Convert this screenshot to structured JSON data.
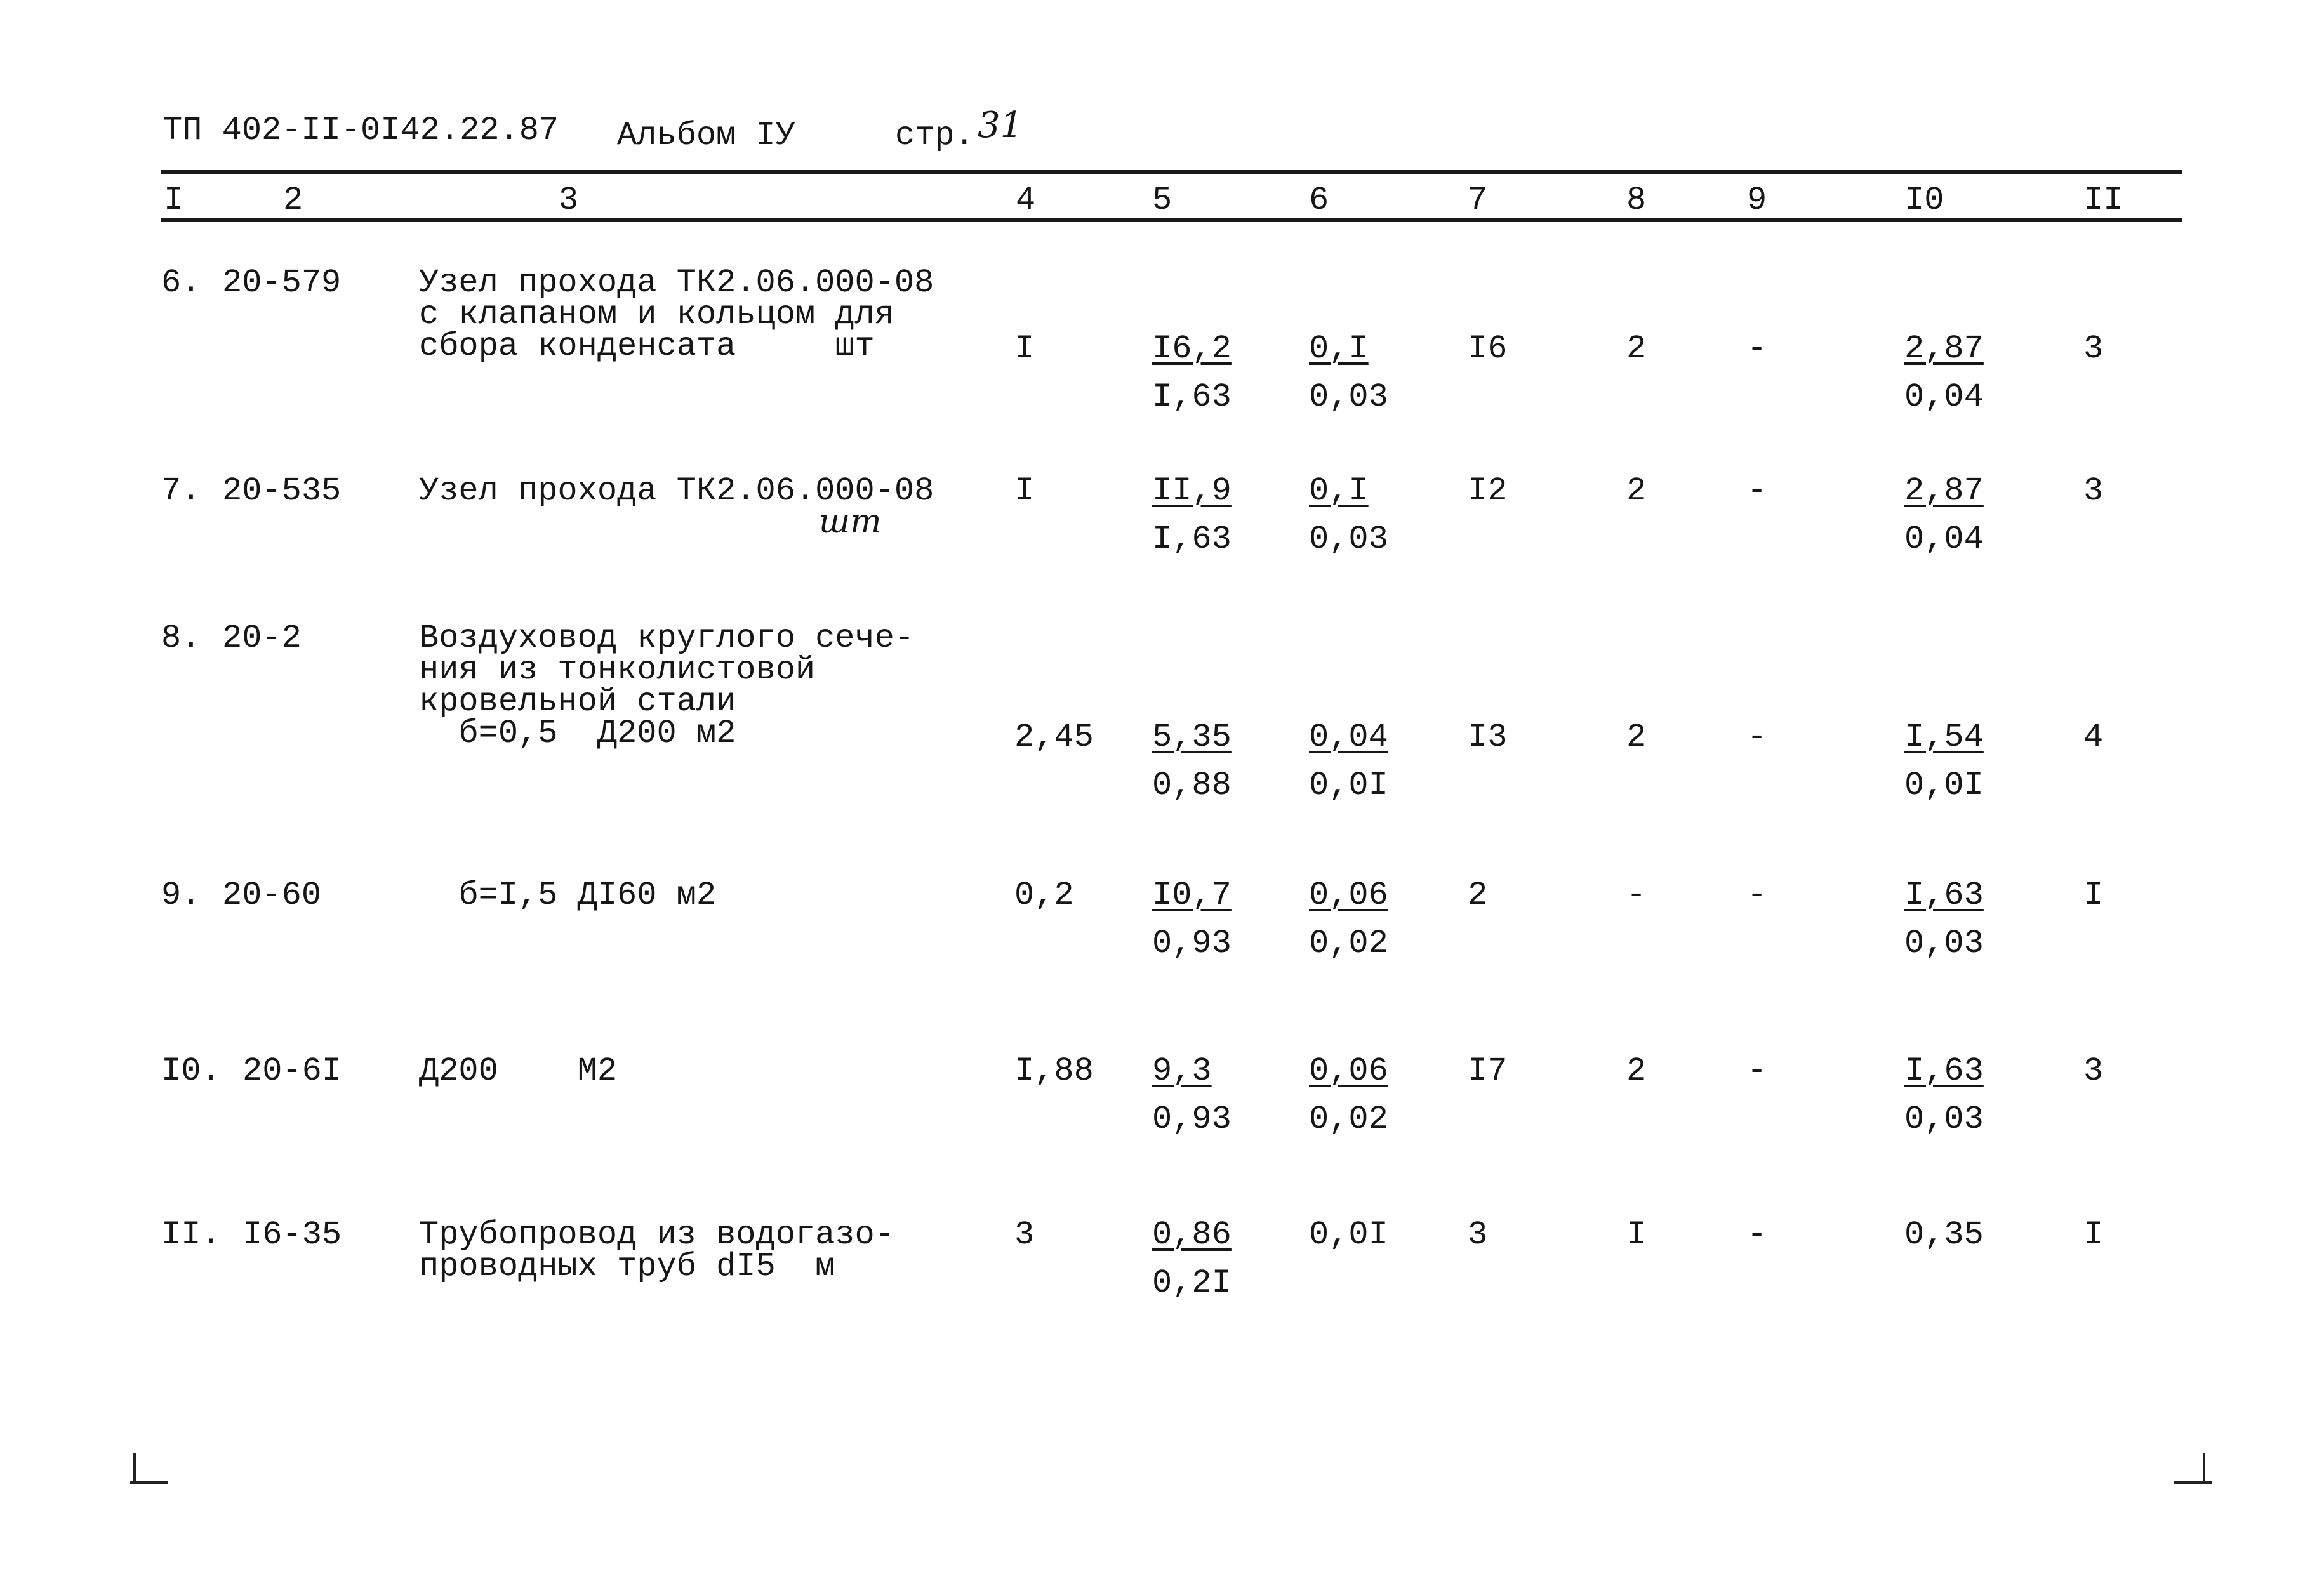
{
  "header": {
    "doc_code": "ТП 402-II-0I42.22.87",
    "album": "Альбом IУ",
    "page_label": "стр.",
    "page_number": "31"
  },
  "column_headers": [
    "I",
    "2",
    "3",
    "4",
    "5",
    "6",
    "7",
    "8",
    "9",
    "I0",
    "II"
  ],
  "rows": [
    {
      "num": "6.",
      "code": "20-579",
      "desc": [
        "Узел прохода ТК2.06.000-08",
        "с клапаном и кольцом для",
        "сбора конденсата     шт"
      ],
      "handwritten_unit": "",
      "c4": "I",
      "c5": {
        "num": "I6,2",
        "den": "I,63"
      },
      "c6": {
        "num": "0,I",
        "den": "0,03"
      },
      "c7": "I6",
      "c8": "2",
      "c9": "-",
      "c10": {
        "num": "2,87",
        "den": "0,04"
      },
      "c11": "3"
    },
    {
      "num": "7.",
      "code": "20-535",
      "desc": [
        "Узел прохода ТК2.06.000-08"
      ],
      "handwritten_unit": "шт",
      "c4": "I",
      "c5": {
        "num": "II,9",
        "den": "I,63"
      },
      "c6": {
        "num": "0,I",
        "den": "0,03"
      },
      "c7": "I2",
      "c8": "2",
      "c9": "-",
      "c10": {
        "num": "2,87",
        "den": "0,04"
      },
      "c11": "3"
    },
    {
      "num": "8.",
      "code": "20-2",
      "desc": [
        "Воздуховод круглого сече-",
        "ния из тонколистовой",
        "кровельной стали",
        "  б=0,5  Д200 м2"
      ],
      "handwritten_unit": "",
      "c4": "2,45",
      "c5": {
        "num": "5,35",
        "den": "0,88"
      },
      "c6": {
        "num": "0,04",
        "den": "0,0I"
      },
      "c7": "I3",
      "c8": "2",
      "c9": "-",
      "c10": {
        "num": "I,54",
        "den": "0,0I"
      },
      "c11": "4"
    },
    {
      "num": "9.",
      "code": "20-60",
      "desc": [
        "  б=I,5 ДI60 м2"
      ],
      "handwritten_unit": "",
      "c4": "0,2",
      "c5": {
        "num": "I0,7",
        "den": "0,93"
      },
      "c6": {
        "num": "0,06",
        "den": "0,02"
      },
      "c7": "2",
      "c8": "-",
      "c9": "-",
      "c10": {
        "num": "I,63",
        "den": "0,03"
      },
      "c11": "I"
    },
    {
      "num": "I0.",
      "code": "20-6I",
      "desc": [
        "Д200    М2"
      ],
      "handwritten_unit": "",
      "c4": "I,88",
      "c5": {
        "num": "9,3",
        "den": "0,93"
      },
      "c6": {
        "num": "0,06",
        "den": "0,02"
      },
      "c7": "I7",
      "c8": "2",
      "c9": "-",
      "c10": {
        "num": "I,63",
        "den": "0,03"
      },
      "c11": "3"
    },
    {
      "num": "II.",
      "code": "I6-35",
      "desc": [
        "Трубопровод из водогазо-",
        "проводных труб dI5  м"
      ],
      "handwritten_unit": "",
      "c4": "3",
      "c5": {
        "num": "0,86",
        "den": "0,2I"
      },
      "c6": "0,0I",
      "c7": "3",
      "c8": "I",
      "c9": "-",
      "c10": "0,35",
      "c11": "I"
    }
  ]
}
